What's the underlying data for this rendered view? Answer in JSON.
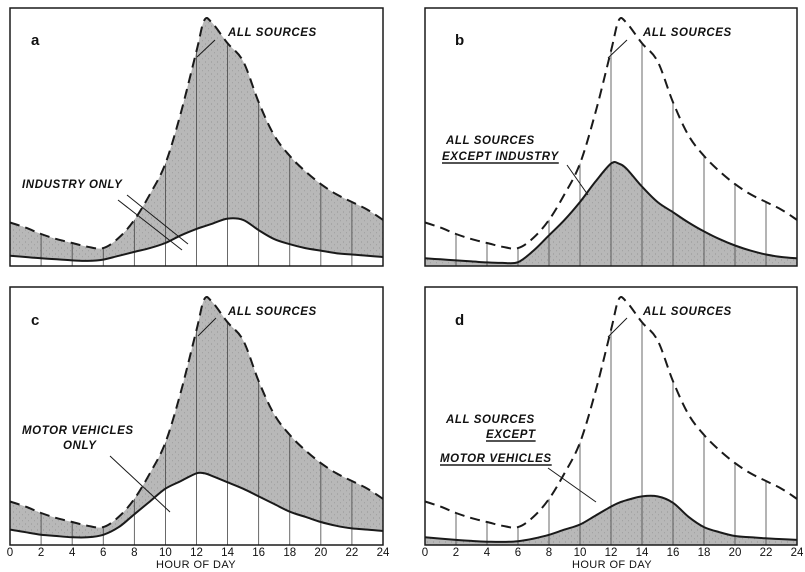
{
  "chart_data": [
    {
      "type": "area",
      "panel_label": "a",
      "x": [
        0,
        1,
        2,
        3,
        4,
        5,
        6,
        7,
        8,
        9,
        10,
        11,
        12,
        12.5,
        13,
        14,
        15,
        16,
        17,
        18,
        19,
        20,
        21,
        22,
        23,
        24
      ],
      "ylim": [
        0,
        100
      ],
      "xlim": [
        0,
        24
      ],
      "series": [
        {
          "name": "ALL SOURCES",
          "style": "dashed",
          "values": [
            17,
            15,
            12.5,
            10.5,
            9,
            7.5,
            7,
            11,
            18,
            28,
            40,
            60,
            84,
            96,
            95,
            87,
            80,
            64,
            51,
            43,
            37,
            32,
            28,
            25,
            22,
            18
          ]
        },
        {
          "name": "INDUSTRY ONLY",
          "style": "solid",
          "values": [
            4,
            3.5,
            3,
            2.6,
            2.2,
            2,
            2.5,
            4,
            5.5,
            7,
            9,
            12,
            14.5,
            15.5,
            16.5,
            18.5,
            18,
            14,
            10.5,
            8.5,
            7,
            6,
            5,
            4.5,
            4,
            3.5
          ]
        }
      ],
      "shaded_region": "between",
      "annotations": [
        "ALL SOURCES",
        "INDUSTRY ONLY"
      ]
    },
    {
      "type": "area",
      "panel_label": "b",
      "x": [
        0,
        1,
        2,
        3,
        4,
        5,
        6,
        7,
        8,
        9,
        10,
        11,
        12,
        12.5,
        13,
        14,
        15,
        16,
        17,
        18,
        19,
        20,
        21,
        22,
        23,
        24
      ],
      "ylim": [
        0,
        100
      ],
      "xlim": [
        0,
        24
      ],
      "series": [
        {
          "name": "ALL SOURCES",
          "style": "dashed",
          "values": [
            17,
            15,
            12.5,
            10.5,
            9,
            7.5,
            7,
            11,
            18,
            28,
            40,
            60,
            84,
            96,
            95,
            87,
            80,
            64,
            51,
            43,
            37,
            32,
            28,
            25,
            22,
            18
          ]
        },
        {
          "name": "ALL SOURCES EXCEPT INDUSTRY",
          "style": "solid",
          "values": [
            3,
            2.6,
            2.2,
            1.8,
            1.4,
            1.2,
            1.5,
            6,
            12,
            18,
            25,
            33,
            40,
            40,
            38,
            31,
            25,
            21,
            17,
            13.5,
            10.5,
            8,
            6,
            4.5,
            3.5,
            3
          ]
        }
      ],
      "shaded_region": "under-solid",
      "annotations": [
        "ALL SOURCES",
        "ALL SOURCES",
        "EXCEPT INDUSTRY"
      ]
    },
    {
      "type": "area",
      "panel_label": "c",
      "x": [
        0,
        1,
        2,
        3,
        4,
        5,
        6,
        7,
        8,
        9,
        10,
        11,
        12,
        12.5,
        13,
        14,
        15,
        16,
        17,
        18,
        19,
        20,
        21,
        22,
        23,
        24
      ],
      "ylim": [
        0,
        100
      ],
      "xlim": [
        0,
        24
      ],
      "series": [
        {
          "name": "ALL SOURCES",
          "style": "dashed",
          "values": [
            17,
            15,
            12.5,
            10.5,
            9,
            7.5,
            7,
            11,
            18,
            28,
            40,
            60,
            84,
            96,
            95,
            87,
            80,
            64,
            51,
            43,
            37,
            32,
            28,
            25,
            22,
            18
          ]
        },
        {
          "name": "MOTOR VEHICLES ONLY",
          "style": "solid",
          "values": [
            6,
            5,
            4,
            3.5,
            3,
            3,
            4,
            7,
            12,
            17,
            22,
            25,
            28,
            28,
            27,
            24.5,
            22,
            19,
            16,
            13,
            11,
            9,
            7.5,
            6.5,
            6,
            5.5
          ]
        }
      ],
      "shaded_region": "between",
      "annotations": [
        "ALL SOURCES",
        "MOTOR VEHICLES",
        "ONLY"
      ]
    },
    {
      "type": "area",
      "panel_label": "d",
      "x": [
        0,
        1,
        2,
        3,
        4,
        5,
        6,
        7,
        8,
        9,
        10,
        11,
        12,
        12.5,
        13,
        14,
        15,
        16,
        17,
        18,
        19,
        20,
        21,
        22,
        23,
        24
      ],
      "ylim": [
        0,
        100
      ],
      "xlim": [
        0,
        24
      ],
      "series": [
        {
          "name": "ALL SOURCES",
          "style": "dashed",
          "values": [
            17,
            15,
            12.5,
            10.5,
            9,
            7.5,
            7,
            11,
            18,
            28,
            40,
            60,
            84,
            96,
            95,
            87,
            80,
            64,
            51,
            43,
            37,
            32,
            28,
            25,
            22,
            18
          ]
        },
        {
          "name": "ALL SOURCES EXCEPT MOTOR VEHICLES",
          "style": "solid",
          "values": [
            3,
            2.5,
            2,
            1.6,
            1.3,
            1.2,
            1.5,
            2.5,
            4,
            6,
            8,
            11.5,
            15,
            16.5,
            17.5,
            19,
            19,
            16.5,
            11,
            7,
            5,
            3.5,
            3,
            2.6,
            2.3,
            2
          ]
        }
      ],
      "shaded_region": "under-solid",
      "annotations": [
        "ALL SOURCES",
        "ALL SOURCES",
        "EXCEPT",
        "MOTOR VEHICLES"
      ]
    }
  ],
  "x_ticks": [
    "0",
    "2",
    "4",
    "6",
    "8",
    "10",
    "12",
    "14",
    "16",
    "18",
    "20",
    "22",
    "24"
  ],
  "xlabel": "HOUR OF DAY",
  "colors": {
    "frame": "#1a1a1a",
    "shade": "#b8b8b8",
    "shade_stipple": "#8a8a8a",
    "curve": "#1a1a1a",
    "hour_line": "#444444"
  }
}
